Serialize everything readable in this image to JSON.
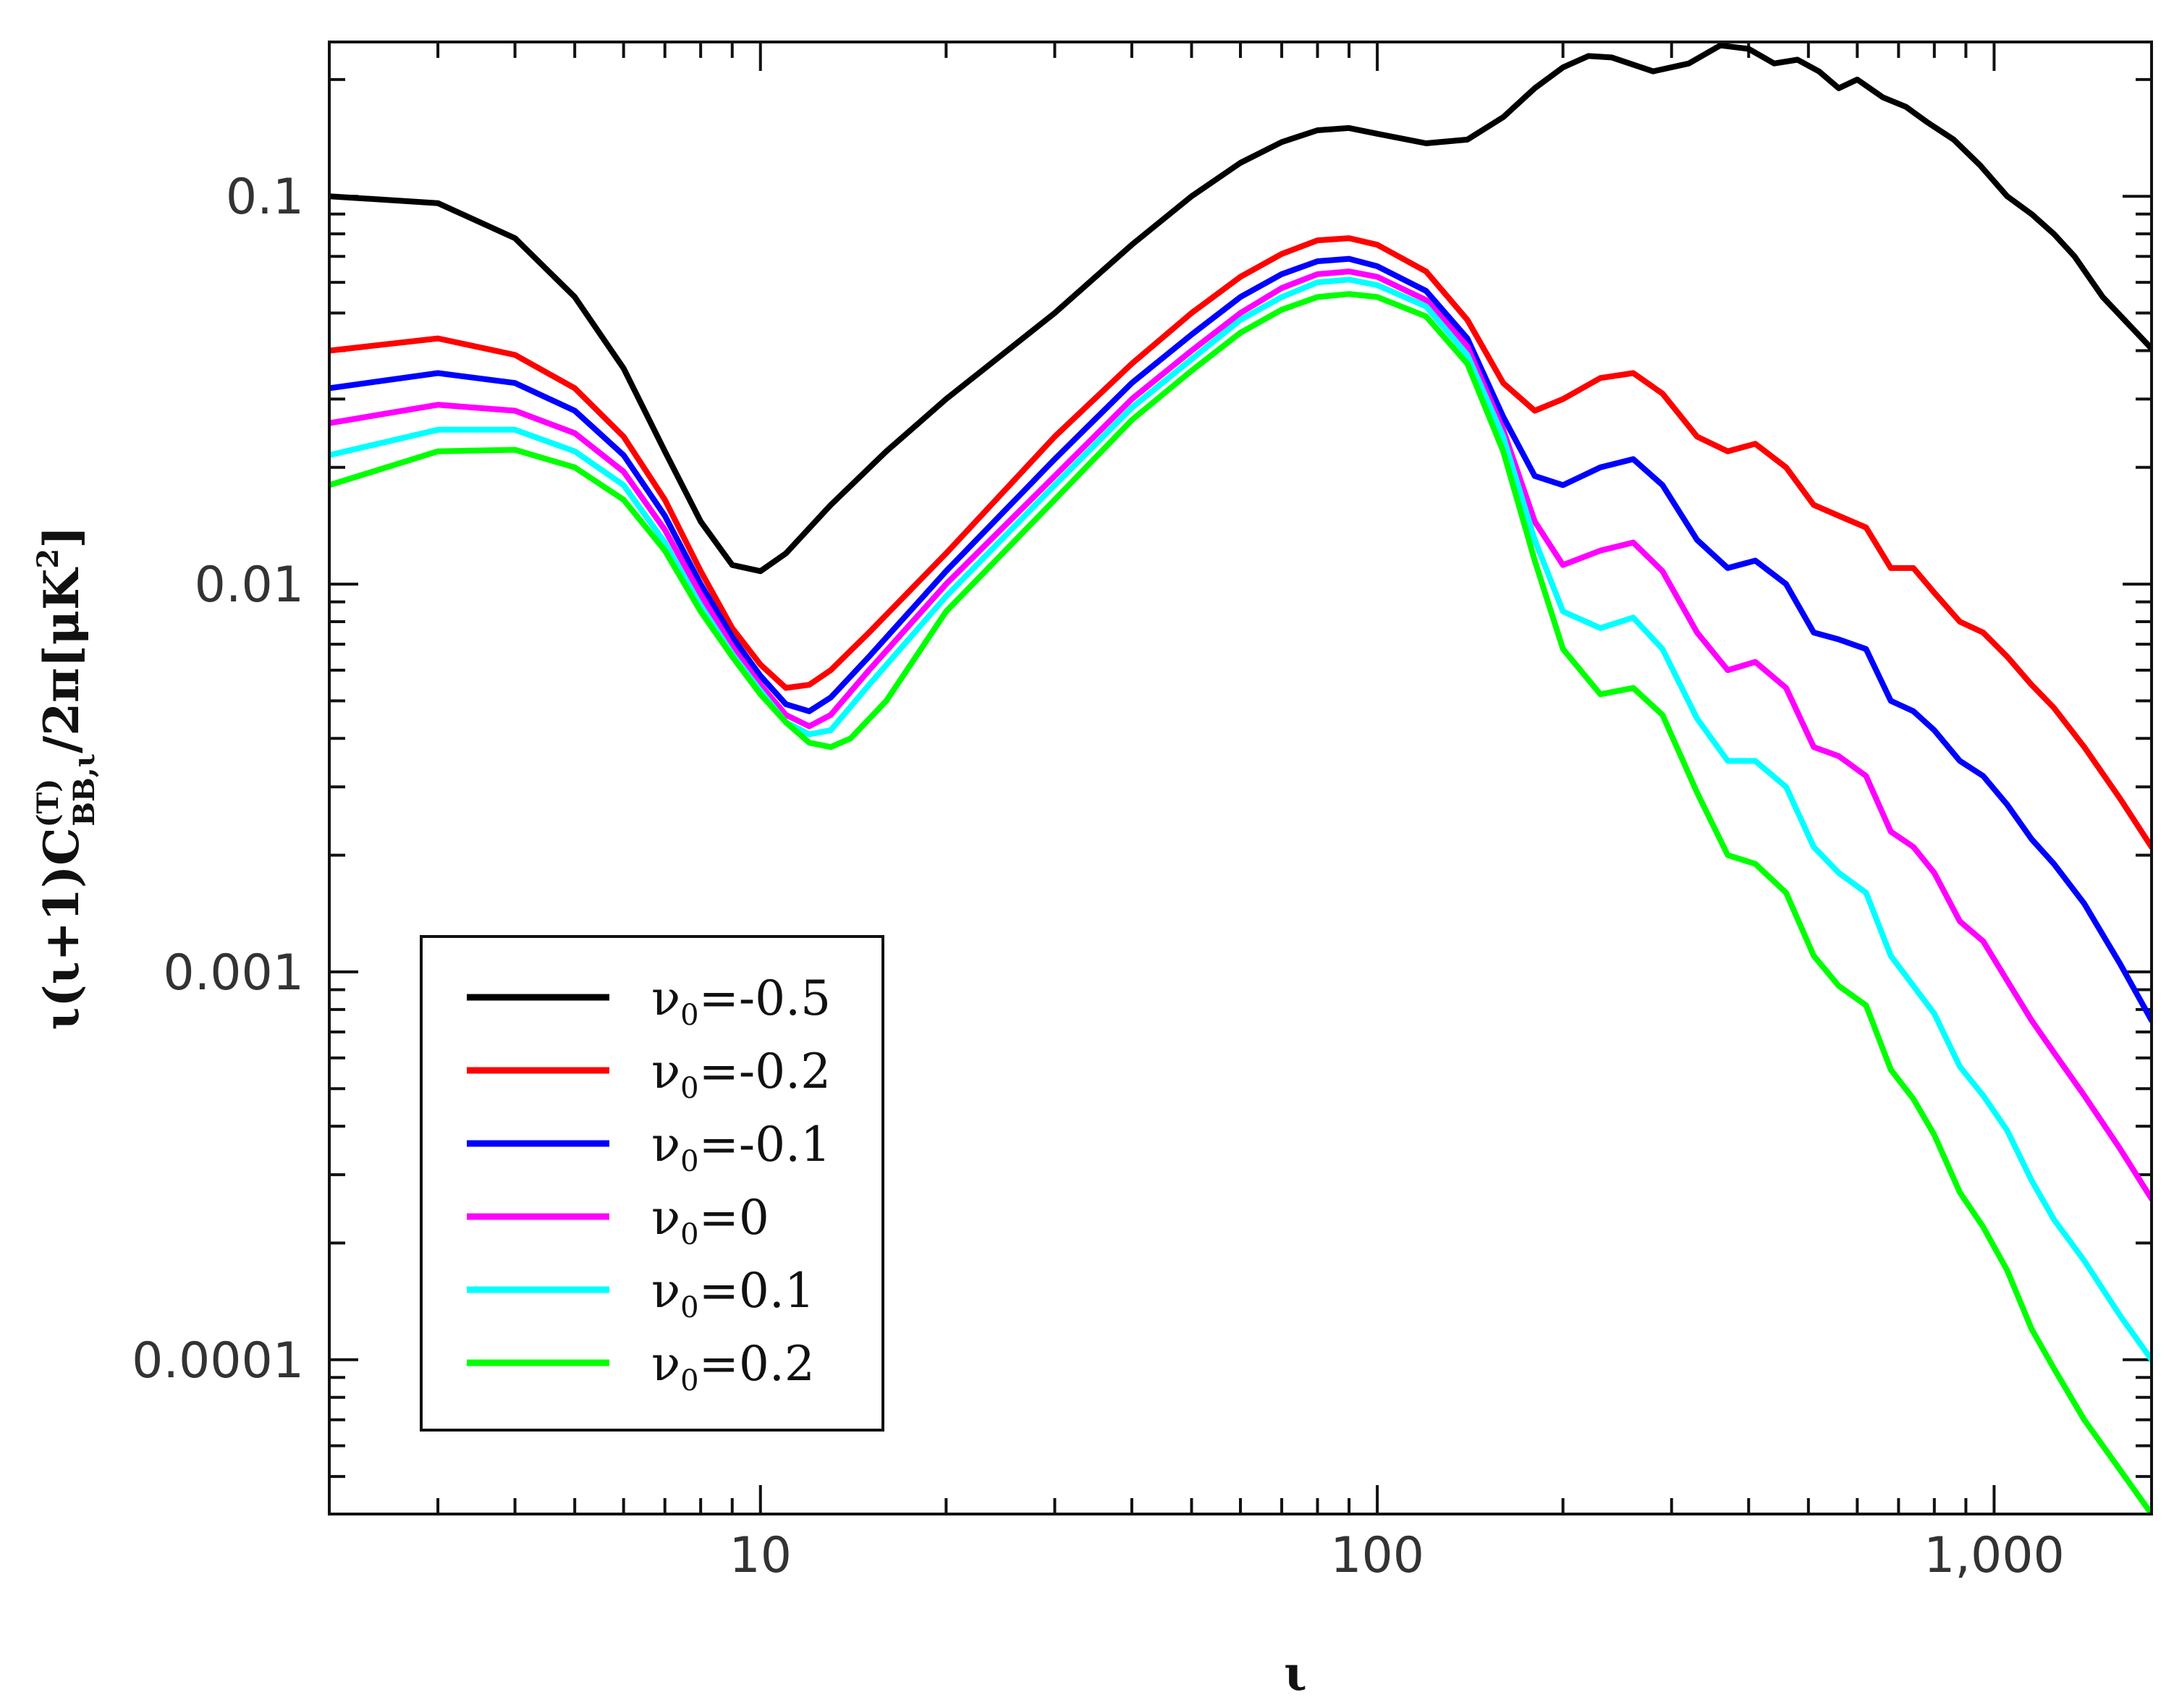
{
  "chart_data": {
    "type": "line",
    "title": "",
    "xlabel": "ι",
    "ylabel": {
      "prefix": "ι(ι+1)C",
      "sup": "(T)",
      "sub": "BB,ι",
      "suffix": "/2π[μK",
      "suffix_sup": "2",
      "suffix_end": "]"
    },
    "xscale": "log",
    "yscale": "log",
    "xlim": [
      2,
      1800
    ],
    "ylim": [
      4e-05,
      0.25
    ],
    "x_ticks": [
      {
        "value": 10,
        "label": "10"
      },
      {
        "value": 100,
        "label": "100"
      },
      {
        "value": 1000,
        "label": "1,000"
      }
    ],
    "y_ticks": [
      {
        "value": 0.1,
        "label": "0.1"
      },
      {
        "value": 0.01,
        "label": "0.01"
      },
      {
        "value": 0.001,
        "label": "0.001"
      },
      {
        "value": 0.0001,
        "label": "0.0001"
      }
    ],
    "legend_position": "bottom-left",
    "series": [
      {
        "name": "-0.5",
        "color": "#000000",
        "points": [
          [
            2,
            0.1
          ],
          [
            3,
            0.096
          ],
          [
            4,
            0.078
          ],
          [
            5,
            0.055
          ],
          [
            6,
            0.036
          ],
          [
            7,
            0.022
          ],
          [
            8,
            0.0145
          ],
          [
            9,
            0.0112
          ],
          [
            10,
            0.0108
          ],
          [
            11,
            0.012
          ],
          [
            13,
            0.016
          ],
          [
            16,
            0.022
          ],
          [
            20,
            0.03
          ],
          [
            30,
            0.05
          ],
          [
            40,
            0.075
          ],
          [
            50,
            0.1
          ],
          [
            60,
            0.122
          ],
          [
            70,
            0.138
          ],
          [
            80,
            0.148
          ],
          [
            90,
            0.15
          ],
          [
            100,
            0.145
          ],
          [
            120,
            0.137
          ],
          [
            140,
            0.14
          ],
          [
            160,
            0.16
          ],
          [
            180,
            0.19
          ],
          [
            200,
            0.215
          ],
          [
            220,
            0.23
          ],
          [
            240,
            0.228
          ],
          [
            280,
            0.21
          ],
          [
            320,
            0.22
          ],
          [
            360,
            0.245
          ],
          [
            400,
            0.24
          ],
          [
            440,
            0.22
          ],
          [
            480,
            0.225
          ],
          [
            520,
            0.21
          ],
          [
            560,
            0.19
          ],
          [
            600,
            0.2
          ],
          [
            660,
            0.18
          ],
          [
            720,
            0.17
          ],
          [
            780,
            0.155
          ],
          [
            860,
            0.14
          ],
          [
            950,
            0.12
          ],
          [
            1050,
            0.1
          ],
          [
            1150,
            0.09
          ],
          [
            1250,
            0.08
          ],
          [
            1350,
            0.07
          ],
          [
            1500,
            0.055
          ],
          [
            1800,
            0.0405
          ]
        ]
      },
      {
        "name": "-0.2",
        "color": "#ff0000",
        "points": [
          [
            2,
            0.04
          ],
          [
            3,
            0.043
          ],
          [
            4,
            0.039
          ],
          [
            5,
            0.032
          ],
          [
            6,
            0.024
          ],
          [
            7,
            0.0165
          ],
          [
            8,
            0.0108
          ],
          [
            9,
            0.0077
          ],
          [
            10,
            0.0062
          ],
          [
            11,
            0.0054
          ],
          [
            12,
            0.0055
          ],
          [
            13,
            0.006
          ],
          [
            15,
            0.0075
          ],
          [
            20,
            0.012
          ],
          [
            30,
            0.024
          ],
          [
            40,
            0.037
          ],
          [
            50,
            0.05
          ],
          [
            60,
            0.062
          ],
          [
            70,
            0.071
          ],
          [
            80,
            0.077
          ],
          [
            90,
            0.078
          ],
          [
            100,
            0.075
          ],
          [
            120,
            0.064
          ],
          [
            140,
            0.048
          ],
          [
            160,
            0.033
          ],
          [
            180,
            0.028
          ],
          [
            200,
            0.03
          ],
          [
            230,
            0.034
          ],
          [
            260,
            0.035
          ],
          [
            290,
            0.031
          ],
          [
            330,
            0.024
          ],
          [
            370,
            0.022
          ],
          [
            410,
            0.023
          ],
          [
            460,
            0.02
          ],
          [
            510,
            0.016
          ],
          [
            560,
            0.015
          ],
          [
            620,
            0.014
          ],
          [
            680,
            0.011
          ],
          [
            740,
            0.011
          ],
          [
            800,
            0.0095
          ],
          [
            880,
            0.008
          ],
          [
            960,
            0.0075
          ],
          [
            1050,
            0.0065
          ],
          [
            1150,
            0.0055
          ],
          [
            1250,
            0.0048
          ],
          [
            1400,
            0.0038
          ],
          [
            1600,
            0.0028
          ],
          [
            1800,
            0.0021
          ]
        ]
      },
      {
        "name": "-0.1",
        "color": "#0000ff",
        "points": [
          [
            2,
            0.032
          ],
          [
            3,
            0.035
          ],
          [
            4,
            0.033
          ],
          [
            5,
            0.028
          ],
          [
            6,
            0.0215
          ],
          [
            7,
            0.015
          ],
          [
            8,
            0.01
          ],
          [
            9,
            0.0073
          ],
          [
            10,
            0.0058
          ],
          [
            11,
            0.0049
          ],
          [
            12,
            0.0047
          ],
          [
            13,
            0.0051
          ],
          [
            15,
            0.0065
          ],
          [
            20,
            0.0108
          ],
          [
            30,
            0.021
          ],
          [
            40,
            0.033
          ],
          [
            50,
            0.044
          ],
          [
            60,
            0.055
          ],
          [
            70,
            0.063
          ],
          [
            80,
            0.068
          ],
          [
            90,
            0.069
          ],
          [
            100,
            0.066
          ],
          [
            120,
            0.057
          ],
          [
            140,
            0.043
          ],
          [
            160,
            0.027
          ],
          [
            180,
            0.019
          ],
          [
            200,
            0.018
          ],
          [
            230,
            0.02
          ],
          [
            260,
            0.021
          ],
          [
            290,
            0.018
          ],
          [
            330,
            0.013
          ],
          [
            370,
            0.011
          ],
          [
            410,
            0.0115
          ],
          [
            460,
            0.01
          ],
          [
            510,
            0.0075
          ],
          [
            560,
            0.0072
          ],
          [
            620,
            0.0068
          ],
          [
            680,
            0.005
          ],
          [
            740,
            0.0047
          ],
          [
            800,
            0.0042
          ],
          [
            880,
            0.0035
          ],
          [
            960,
            0.0032
          ],
          [
            1050,
            0.0027
          ],
          [
            1150,
            0.0022
          ],
          [
            1250,
            0.0019
          ],
          [
            1400,
            0.0015
          ],
          [
            1600,
            0.00105
          ],
          [
            1800,
            0.00075
          ]
        ]
      },
      {
        "name": "0",
        "color": "#ff00ff",
        "points": [
          [
            2,
            0.026
          ],
          [
            3,
            0.029
          ],
          [
            4,
            0.028
          ],
          [
            5,
            0.0245
          ],
          [
            6,
            0.0195
          ],
          [
            7,
            0.0138
          ],
          [
            8,
            0.0094
          ],
          [
            9,
            0.0069
          ],
          [
            10,
            0.0055
          ],
          [
            11,
            0.0046
          ],
          [
            12,
            0.0043
          ],
          [
            13,
            0.0046
          ],
          [
            15,
            0.006
          ],
          [
            20,
            0.01
          ],
          [
            30,
            0.019
          ],
          [
            40,
            0.03
          ],
          [
            50,
            0.04
          ],
          [
            60,
            0.05
          ],
          [
            70,
            0.058
          ],
          [
            80,
            0.063
          ],
          [
            90,
            0.064
          ],
          [
            100,
            0.062
          ],
          [
            120,
            0.054
          ],
          [
            140,
            0.041
          ],
          [
            160,
            0.025
          ],
          [
            180,
            0.0145
          ],
          [
            200,
            0.0112
          ],
          [
            230,
            0.0122
          ],
          [
            260,
            0.0128
          ],
          [
            290,
            0.0108
          ],
          [
            330,
            0.0075
          ],
          [
            370,
            0.006
          ],
          [
            410,
            0.0063
          ],
          [
            460,
            0.0054
          ],
          [
            510,
            0.0038
          ],
          [
            560,
            0.0036
          ],
          [
            620,
            0.0032
          ],
          [
            680,
            0.0023
          ],
          [
            740,
            0.0021
          ],
          [
            800,
            0.0018
          ],
          [
            880,
            0.00135
          ],
          [
            960,
            0.0012
          ],
          [
            1050,
            0.00095
          ],
          [
            1150,
            0.00075
          ],
          [
            1250,
            0.00062
          ],
          [
            1400,
            0.00048
          ],
          [
            1600,
            0.00035
          ],
          [
            1800,
            0.00026
          ]
        ]
      },
      {
        "name": "0.1",
        "color": "#00ffff",
        "points": [
          [
            2,
            0.0215
          ],
          [
            3,
            0.025
          ],
          [
            4,
            0.025
          ],
          [
            5,
            0.022
          ],
          [
            6,
            0.018
          ],
          [
            7,
            0.0128
          ],
          [
            8,
            0.0088
          ],
          [
            9,
            0.0066
          ],
          [
            10,
            0.0053
          ],
          [
            11,
            0.0044
          ],
          [
            12,
            0.0041
          ],
          [
            13,
            0.0042
          ],
          [
            15,
            0.0055
          ],
          [
            20,
            0.0093
          ],
          [
            30,
            0.018
          ],
          [
            40,
            0.0285
          ],
          [
            50,
            0.038
          ],
          [
            60,
            0.048
          ],
          [
            70,
            0.055
          ],
          [
            80,
            0.06
          ],
          [
            90,
            0.061
          ],
          [
            100,
            0.059
          ],
          [
            120,
            0.052
          ],
          [
            140,
            0.039
          ],
          [
            160,
            0.024
          ],
          [
            180,
            0.013
          ],
          [
            200,
            0.0085
          ],
          [
            230,
            0.0077
          ],
          [
            260,
            0.0082
          ],
          [
            290,
            0.0068
          ],
          [
            330,
            0.0045
          ],
          [
            370,
            0.0035
          ],
          [
            410,
            0.0035
          ],
          [
            460,
            0.003
          ],
          [
            510,
            0.0021
          ],
          [
            560,
            0.0018
          ],
          [
            620,
            0.0016
          ],
          [
            680,
            0.0011
          ],
          [
            740,
            0.00092
          ],
          [
            800,
            0.00078
          ],
          [
            880,
            0.00057
          ],
          [
            960,
            0.00048
          ],
          [
            1050,
            0.00039
          ],
          [
            1150,
            0.00029
          ],
          [
            1250,
            0.00023
          ],
          [
            1400,
            0.00018
          ],
          [
            1600,
            0.00013
          ],
          [
            1800,
            0.0001
          ]
        ]
      },
      {
        "name": "0.2",
        "color": "#00ff00",
        "points": [
          [
            2,
            0.018
          ],
          [
            3,
            0.022
          ],
          [
            4,
            0.0222
          ],
          [
            5,
            0.02
          ],
          [
            6,
            0.0165
          ],
          [
            7,
            0.0122
          ],
          [
            8,
            0.0085
          ],
          [
            9,
            0.0065
          ],
          [
            10,
            0.0052
          ],
          [
            11,
            0.0044
          ],
          [
            12,
            0.0039
          ],
          [
            13,
            0.0038
          ],
          [
            14,
            0.004
          ],
          [
            16,
            0.005
          ],
          [
            20,
            0.0085
          ],
          [
            30,
            0.0165
          ],
          [
            40,
            0.0265
          ],
          [
            50,
            0.0355
          ],
          [
            60,
            0.0445
          ],
          [
            70,
            0.051
          ],
          [
            80,
            0.055
          ],
          [
            90,
            0.056
          ],
          [
            100,
            0.055
          ],
          [
            120,
            0.049
          ],
          [
            140,
            0.037
          ],
          [
            160,
            0.022
          ],
          [
            180,
            0.0115
          ],
          [
            200,
            0.0068
          ],
          [
            230,
            0.0052
          ],
          [
            260,
            0.0054
          ],
          [
            290,
            0.0046
          ],
          [
            330,
            0.0029
          ],
          [
            370,
            0.002
          ],
          [
            410,
            0.0019
          ],
          [
            460,
            0.0016
          ],
          [
            510,
            0.0011
          ],
          [
            560,
            0.00092
          ],
          [
            620,
            0.00082
          ],
          [
            680,
            0.00056
          ],
          [
            740,
            0.00047
          ],
          [
            800,
            0.00038
          ],
          [
            880,
            0.00027
          ],
          [
            960,
            0.00022
          ],
          [
            1050,
            0.00017
          ],
          [
            1150,
            0.00012
          ],
          [
            1250,
            9.5e-05
          ],
          [
            1400,
            7e-05
          ],
          [
            1600,
            5.2e-05
          ],
          [
            1800,
            4e-05
          ]
        ]
      }
    ]
  }
}
